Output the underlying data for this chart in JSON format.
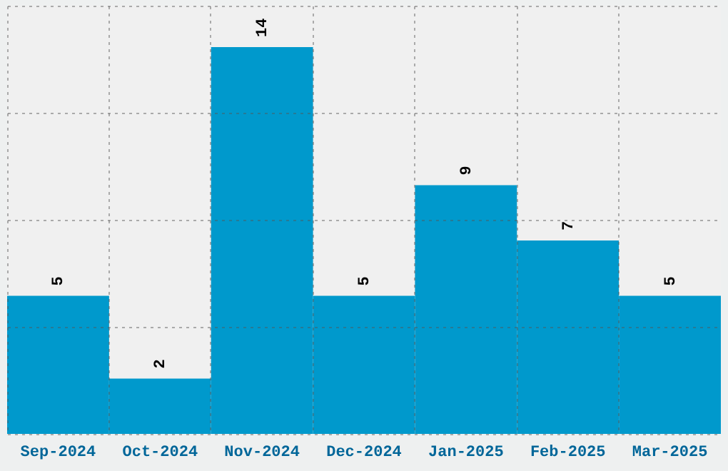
{
  "chart_data": {
    "type": "bar",
    "categories": [
      "Sep-2024",
      "Oct-2024",
      "Nov-2024",
      "Dec-2024",
      "Jan-2025",
      "Feb-2025",
      "Mar-2025"
    ],
    "values": [
      5,
      2,
      14,
      5,
      9,
      7,
      5
    ],
    "color": "#0099cc",
    "ylim": [
      0,
      15.5
    ],
    "yticks": [
      {
        "value": 0,
        "label": null
      },
      {
        "value": 3.875,
        "label": null
      },
      {
        "value": 7.75,
        "label": null
      },
      {
        "value": 11.625,
        "label": null
      },
      {
        "value": 15.5,
        "label": null
      }
    ],
    "grid": true,
    "data_labels": true,
    "tick_labels": "x"
  }
}
